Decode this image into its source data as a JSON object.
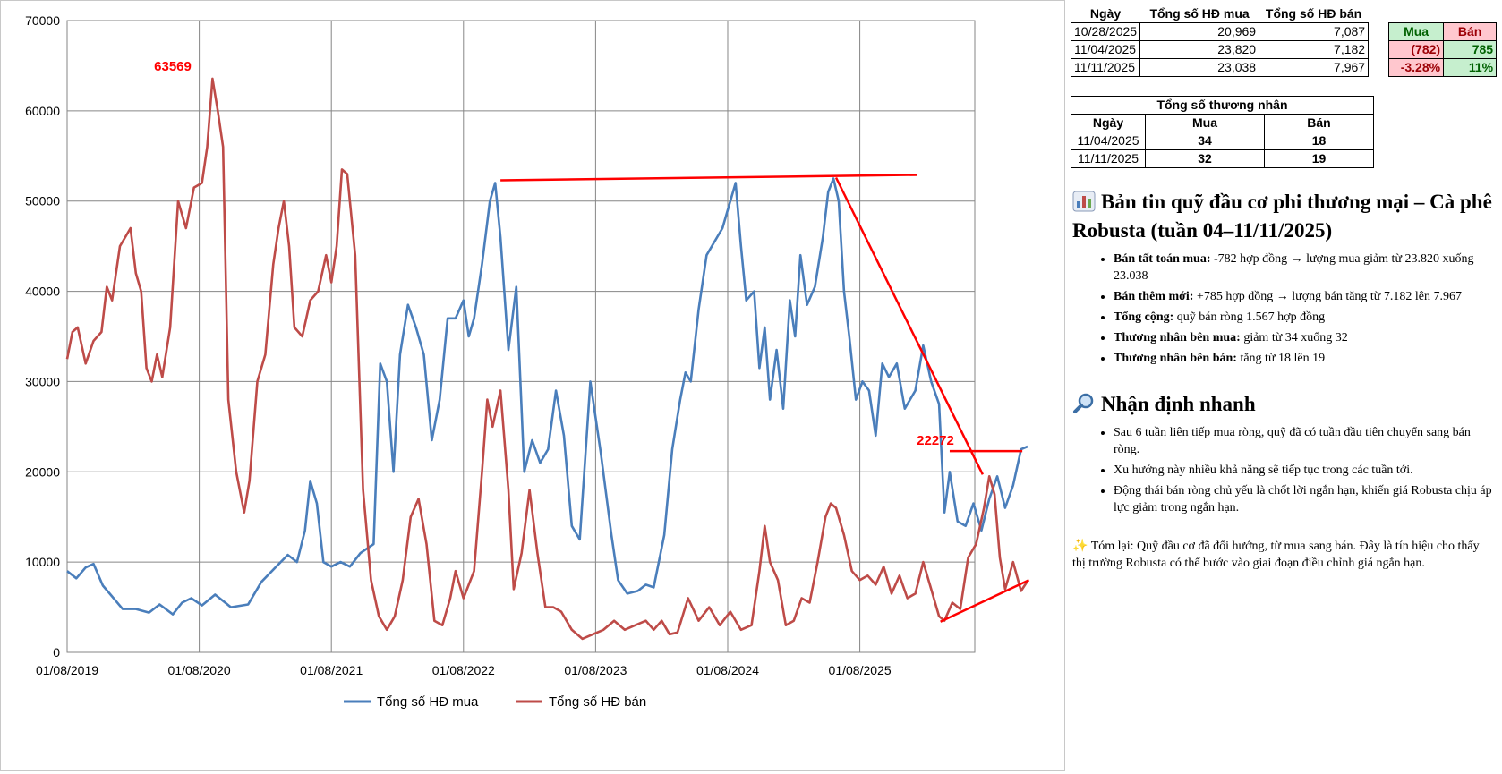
{
  "chart_data": {
    "type": "line",
    "ylim": [
      0,
      70000
    ],
    "yticks": [
      0,
      10000,
      20000,
      30000,
      40000,
      50000,
      60000,
      70000
    ],
    "xticks": [
      "01/08/2019",
      "01/08/2020",
      "01/08/2021",
      "01/08/2022",
      "01/08/2023",
      "01/08/2024",
      "01/08/2025"
    ],
    "annotations": {
      "peak_label": "63569",
      "last_label": "22272"
    },
    "series": [
      {
        "name": "Tổng số  HĐ mua",
        "color": "#4a7ebb",
        "points": [
          [
            2019.58,
            9000
          ],
          [
            2019.65,
            8200
          ],
          [
            2019.72,
            9400
          ],
          [
            2019.78,
            9800
          ],
          [
            2019.85,
            7400
          ],
          [
            2019.92,
            6200
          ],
          [
            2020.0,
            4800
          ],
          [
            2020.1,
            4800
          ],
          [
            2020.2,
            4400
          ],
          [
            2020.28,
            5300
          ],
          [
            2020.38,
            4200
          ],
          [
            2020.45,
            5500
          ],
          [
            2020.52,
            6000
          ],
          [
            2020.6,
            5200
          ],
          [
            2020.7,
            6400
          ],
          [
            2020.82,
            5000
          ],
          [
            2020.95,
            5300
          ],
          [
            2021.05,
            7800
          ],
          [
            2021.15,
            9300
          ],
          [
            2021.25,
            10800
          ],
          [
            2021.32,
            10000
          ],
          [
            2021.38,
            13500
          ],
          [
            2021.42,
            19000
          ],
          [
            2021.47,
            16500
          ],
          [
            2021.52,
            10000
          ],
          [
            2021.58,
            9500
          ],
          [
            2021.65,
            10000
          ],
          [
            2021.72,
            9500
          ],
          [
            2021.8,
            11000
          ],
          [
            2021.9,
            12000
          ],
          [
            2021.95,
            32000
          ],
          [
            2022.0,
            30000
          ],
          [
            2022.05,
            20000
          ],
          [
            2022.1,
            33000
          ],
          [
            2022.16,
            38500
          ],
          [
            2022.22,
            36000
          ],
          [
            2022.28,
            33000
          ],
          [
            2022.34,
            23500
          ],
          [
            2022.4,
            28000
          ],
          [
            2022.46,
            37000
          ],
          [
            2022.52,
            37000
          ],
          [
            2022.58,
            39000
          ],
          [
            2022.62,
            35000
          ],
          [
            2022.66,
            37000
          ],
          [
            2022.72,
            43000
          ],
          [
            2022.78,
            50000
          ],
          [
            2022.82,
            52000
          ],
          [
            2022.86,
            46000
          ],
          [
            2022.92,
            33500
          ],
          [
            2022.98,
            40500
          ],
          [
            2023.04,
            20000
          ],
          [
            2023.1,
            23500
          ],
          [
            2023.16,
            21000
          ],
          [
            2023.22,
            22500
          ],
          [
            2023.28,
            29000
          ],
          [
            2023.34,
            24000
          ],
          [
            2023.4,
            14000
          ],
          [
            2023.46,
            12500
          ],
          [
            2023.54,
            30000
          ],
          [
            2023.62,
            22000
          ],
          [
            2023.7,
            13000
          ],
          [
            2023.75,
            8000
          ],
          [
            2023.82,
            6500
          ],
          [
            2023.9,
            6800
          ],
          [
            2023.96,
            7500
          ],
          [
            2024.02,
            7200
          ],
          [
            2024.1,
            13000
          ],
          [
            2024.16,
            22500
          ],
          [
            2024.22,
            28000
          ],
          [
            2024.26,
            31000
          ],
          [
            2024.3,
            30000
          ],
          [
            2024.36,
            38000
          ],
          [
            2024.42,
            44000
          ],
          [
            2024.48,
            45500
          ],
          [
            2024.54,
            47000
          ],
          [
            2024.6,
            50000
          ],
          [
            2024.64,
            52000
          ],
          [
            2024.68,
            45000
          ],
          [
            2024.72,
            39000
          ],
          [
            2024.78,
            40000
          ],
          [
            2024.82,
            31500
          ],
          [
            2024.86,
            36000
          ],
          [
            2024.9,
            28000
          ],
          [
            2024.95,
            33500
          ],
          [
            2025.0,
            27000
          ],
          [
            2025.05,
            39000
          ],
          [
            2025.09,
            35000
          ],
          [
            2025.13,
            44000
          ],
          [
            2025.18,
            38500
          ],
          [
            2025.24,
            40500
          ],
          [
            2025.3,
            46000
          ],
          [
            2025.34,
            51000
          ],
          [
            2025.38,
            52500
          ],
          [
            2025.42,
            50000
          ],
          [
            2025.46,
            40000
          ],
          [
            2025.5,
            35000
          ],
          [
            2025.55,
            28000
          ],
          [
            2025.6,
            30000
          ],
          [
            2025.65,
            29000
          ],
          [
            2025.7,
            24000
          ],
          [
            2025.75,
            32000
          ],
          [
            2025.8,
            30500
          ],
          [
            2025.86,
            32000
          ],
          [
            2025.92,
            27000
          ],
          [
            2025.96,
            28000
          ],
          [
            2026.0,
            29000
          ],
          [
            2026.06,
            34000
          ],
          [
            2026.12,
            30000
          ],
          [
            2026.18,
            27500
          ],
          [
            2026.22,
            15500
          ],
          [
            2026.26,
            20000
          ],
          [
            2026.32,
            14500
          ],
          [
            2026.38,
            14000
          ],
          [
            2026.44,
            16500
          ],
          [
            2026.5,
            13500
          ],
          [
            2026.56,
            17000
          ],
          [
            2026.62,
            19500
          ],
          [
            2026.68,
            16000
          ],
          [
            2026.74,
            18500
          ],
          [
            2026.8,
            22500
          ],
          [
            2026.85,
            22800
          ]
        ]
      },
      {
        "name": "Tổng số HĐ bán",
        "color": "#be4b48",
        "points": [
          [
            2019.58,
            32500
          ],
          [
            2019.62,
            35500
          ],
          [
            2019.66,
            36000
          ],
          [
            2019.72,
            32000
          ],
          [
            2019.78,
            34500
          ],
          [
            2019.84,
            35500
          ],
          [
            2019.88,
            40500
          ],
          [
            2019.92,
            39000
          ],
          [
            2019.98,
            45000
          ],
          [
            2020.02,
            46000
          ],
          [
            2020.06,
            47000
          ],
          [
            2020.1,
            42000
          ],
          [
            2020.14,
            40000
          ],
          [
            2020.18,
            31500
          ],
          [
            2020.22,
            30000
          ],
          [
            2020.26,
            33000
          ],
          [
            2020.3,
            30500
          ],
          [
            2020.36,
            36000
          ],
          [
            2020.42,
            50000
          ],
          [
            2020.48,
            47000
          ],
          [
            2020.54,
            51500
          ],
          [
            2020.6,
            52000
          ],
          [
            2020.64,
            56000
          ],
          [
            2020.68,
            63569
          ],
          [
            2020.72,
            60000
          ],
          [
            2020.76,
            56000
          ],
          [
            2020.8,
            28000
          ],
          [
            2020.86,
            20000
          ],
          [
            2020.92,
            15500
          ],
          [
            2020.96,
            19000
          ],
          [
            2021.02,
            30000
          ],
          [
            2021.08,
            33000
          ],
          [
            2021.14,
            43000
          ],
          [
            2021.18,
            47000
          ],
          [
            2021.22,
            50000
          ],
          [
            2021.26,
            45000
          ],
          [
            2021.3,
            36000
          ],
          [
            2021.36,
            35000
          ],
          [
            2021.42,
            39000
          ],
          [
            2021.48,
            40000
          ],
          [
            2021.54,
            44000
          ],
          [
            2021.58,
            41000
          ],
          [
            2021.62,
            45000
          ],
          [
            2021.66,
            53500
          ],
          [
            2021.7,
            53000
          ],
          [
            2021.76,
            44000
          ],
          [
            2021.82,
            18000
          ],
          [
            2021.88,
            8000
          ],
          [
            2021.94,
            4000
          ],
          [
            2022.0,
            2500
          ],
          [
            2022.06,
            4000
          ],
          [
            2022.12,
            8000
          ],
          [
            2022.18,
            15000
          ],
          [
            2022.24,
            17000
          ],
          [
            2022.3,
            12000
          ],
          [
            2022.36,
            3500
          ],
          [
            2022.42,
            3000
          ],
          [
            2022.48,
            6000
          ],
          [
            2022.52,
            9000
          ],
          [
            2022.58,
            6000
          ],
          [
            2022.66,
            9000
          ],
          [
            2022.72,
            20000
          ],
          [
            2022.76,
            28000
          ],
          [
            2022.8,
            25000
          ],
          [
            2022.86,
            29000
          ],
          [
            2022.92,
            18000
          ],
          [
            2022.96,
            7000
          ],
          [
            2023.02,
            11000
          ],
          [
            2023.08,
            18000
          ],
          [
            2023.14,
            11000
          ],
          [
            2023.2,
            5000
          ],
          [
            2023.26,
            5000
          ],
          [
            2023.32,
            4500
          ],
          [
            2023.4,
            2500
          ],
          [
            2023.48,
            1500
          ],
          [
            2023.56,
            2000
          ],
          [
            2023.64,
            2500
          ],
          [
            2023.72,
            3500
          ],
          [
            2023.8,
            2500
          ],
          [
            2023.88,
            3000
          ],
          [
            2023.96,
            3500
          ],
          [
            2024.02,
            2500
          ],
          [
            2024.08,
            3500
          ],
          [
            2024.14,
            2000
          ],
          [
            2024.2,
            2200
          ],
          [
            2024.28,
            6000
          ],
          [
            2024.36,
            3500
          ],
          [
            2024.44,
            5000
          ],
          [
            2024.52,
            3000
          ],
          [
            2024.6,
            4500
          ],
          [
            2024.68,
            2500
          ],
          [
            2024.76,
            3000
          ],
          [
            2024.82,
            9000
          ],
          [
            2024.86,
            14000
          ],
          [
            2024.9,
            10000
          ],
          [
            2024.96,
            8000
          ],
          [
            2025.02,
            3000
          ],
          [
            2025.08,
            3500
          ],
          [
            2025.14,
            6000
          ],
          [
            2025.2,
            5500
          ],
          [
            2025.26,
            10000
          ],
          [
            2025.32,
            15000
          ],
          [
            2025.36,
            16500
          ],
          [
            2025.4,
            16000
          ],
          [
            2025.46,
            13000
          ],
          [
            2025.52,
            9000
          ],
          [
            2025.58,
            8000
          ],
          [
            2025.64,
            8500
          ],
          [
            2025.7,
            7500
          ],
          [
            2025.76,
            9500
          ],
          [
            2025.82,
            6500
          ],
          [
            2025.88,
            8500
          ],
          [
            2025.94,
            6000
          ],
          [
            2026.0,
            6500
          ],
          [
            2026.06,
            10000
          ],
          [
            2026.12,
            7000
          ],
          [
            2026.18,
            4000
          ],
          [
            2026.22,
            3500
          ],
          [
            2026.28,
            5500
          ],
          [
            2026.34,
            4800
          ],
          [
            2026.4,
            10500
          ],
          [
            2026.46,
            12000
          ],
          [
            2026.52,
            16000
          ],
          [
            2026.56,
            19500
          ],
          [
            2026.6,
            17500
          ],
          [
            2026.64,
            10500
          ],
          [
            2026.68,
            7000
          ],
          [
            2026.74,
            10000
          ],
          [
            2026.8,
            6800
          ],
          [
            2026.85,
            7900
          ]
        ]
      }
    ]
  },
  "cmp_table": {
    "headers": [
      "Ngày",
      "Tổng số  HĐ mua",
      "Tổng số HĐ bán"
    ],
    "rows": [
      [
        "10/28/2025",
        "20,969",
        "7,087"
      ],
      [
        "11/04/2025",
        "23,820",
        "7,182"
      ],
      [
        "11/11/2025",
        "23,038",
        "7,967"
      ]
    ],
    "change_headers": [
      "Mua",
      "Bán"
    ],
    "change_rows": [
      [
        "(782)",
        "785"
      ],
      [
        "-3.28%",
        "11%"
      ]
    ]
  },
  "trader_table": {
    "title": "Tổng số thương nhân",
    "headers": [
      "Ngày",
      "Mua",
      "Bán"
    ],
    "rows": [
      [
        "11/04/2025",
        "34",
        "18"
      ],
      [
        "11/11/2025",
        "32",
        "19"
      ]
    ]
  },
  "section1": {
    "icon": "bar-chart-icon",
    "title": "Bản tin quỹ đầu cơ phi thương mại – Cà phê Robusta (tuần 04–11/11/2025)",
    "items": [
      {
        "label": "Bán tất toán mua:",
        "text": "-782 hợp đồng → lượng mua giảm từ 23.820 xuống 23.038"
      },
      {
        "label": "Bán thêm mới:",
        "text": "+785 hợp đồng → lượng bán tăng từ 7.182 lên 7.967"
      },
      {
        "label": "Tổng cộng:",
        "text": "quỹ bán ròng 1.567 hợp đồng"
      },
      {
        "label": "Thương nhân bên mua:",
        "text": "giảm từ 34 xuống 32"
      },
      {
        "label": "Thương nhân bên bán:",
        "text": "tăng từ 18 lên 19"
      }
    ]
  },
  "section2": {
    "icon": "magnifier-icon",
    "title": "Nhận định nhanh",
    "items": [
      "Sau 6 tuần liên tiếp mua ròng, quỹ đã có tuần đầu tiên chuyển sang bán ròng.",
      "Xu hướng này nhiều khả năng sẽ tiếp tục trong các tuần tới.",
      "Động thái bán ròng chủ yếu là chốt lời ngắn hạn, khiến giá Robusta chịu áp lực giảm trong ngắn hạn."
    ]
  },
  "summary": {
    "icon": "sparkle-icon",
    "text": "Tóm lại: Quỹ đầu cơ đã đổi hướng, từ mua sang bán. Đây là tín hiệu cho thấy thị trường Robusta có thể bước vào giai đoạn điều chỉnh giá ngắn hạn."
  }
}
